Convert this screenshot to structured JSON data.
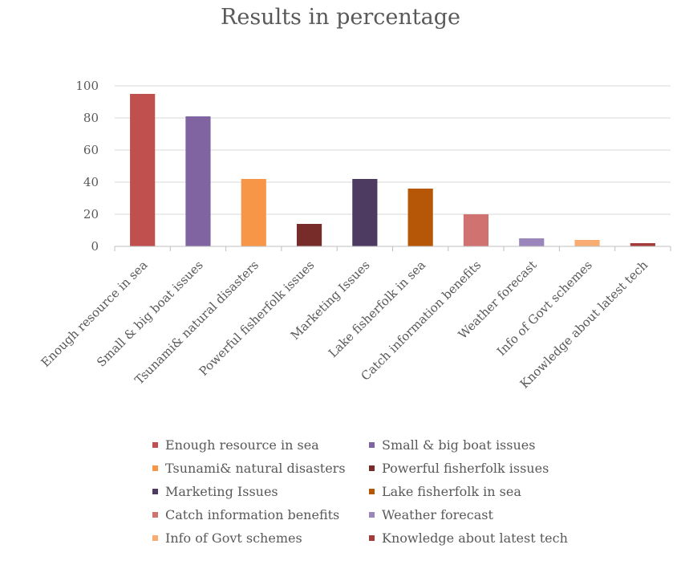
{
  "chart_data": {
    "type": "bar",
    "title": "Results in percentage",
    "xlabel": "",
    "ylabel": "",
    "ylim": [
      0,
      100
    ],
    "yticks": [
      0,
      20,
      40,
      60,
      80,
      100
    ],
    "grid": true,
    "legend_position": "bottom",
    "categories": [
      "Enough resource in sea",
      "Small & big boat issues",
      "Tsunami& natural disasters",
      "Powerful fisherfolk issues",
      "Marketing Issues",
      "Lake fisherfolk in sea",
      "Catch information benefits",
      "Weather forecast",
      "Info of Govt schemes",
      "Knowledge about latest tech"
    ],
    "values": [
      95,
      81,
      42,
      14,
      42,
      36,
      20,
      5,
      4,
      2
    ],
    "colors": [
      "#c0504d",
      "#8064a2",
      "#f79646",
      "#772c2a",
      "#4d3b62",
      "#b65708",
      "#d07270",
      "#9a86bb",
      "#f9ac72",
      "#a33b38"
    ]
  }
}
